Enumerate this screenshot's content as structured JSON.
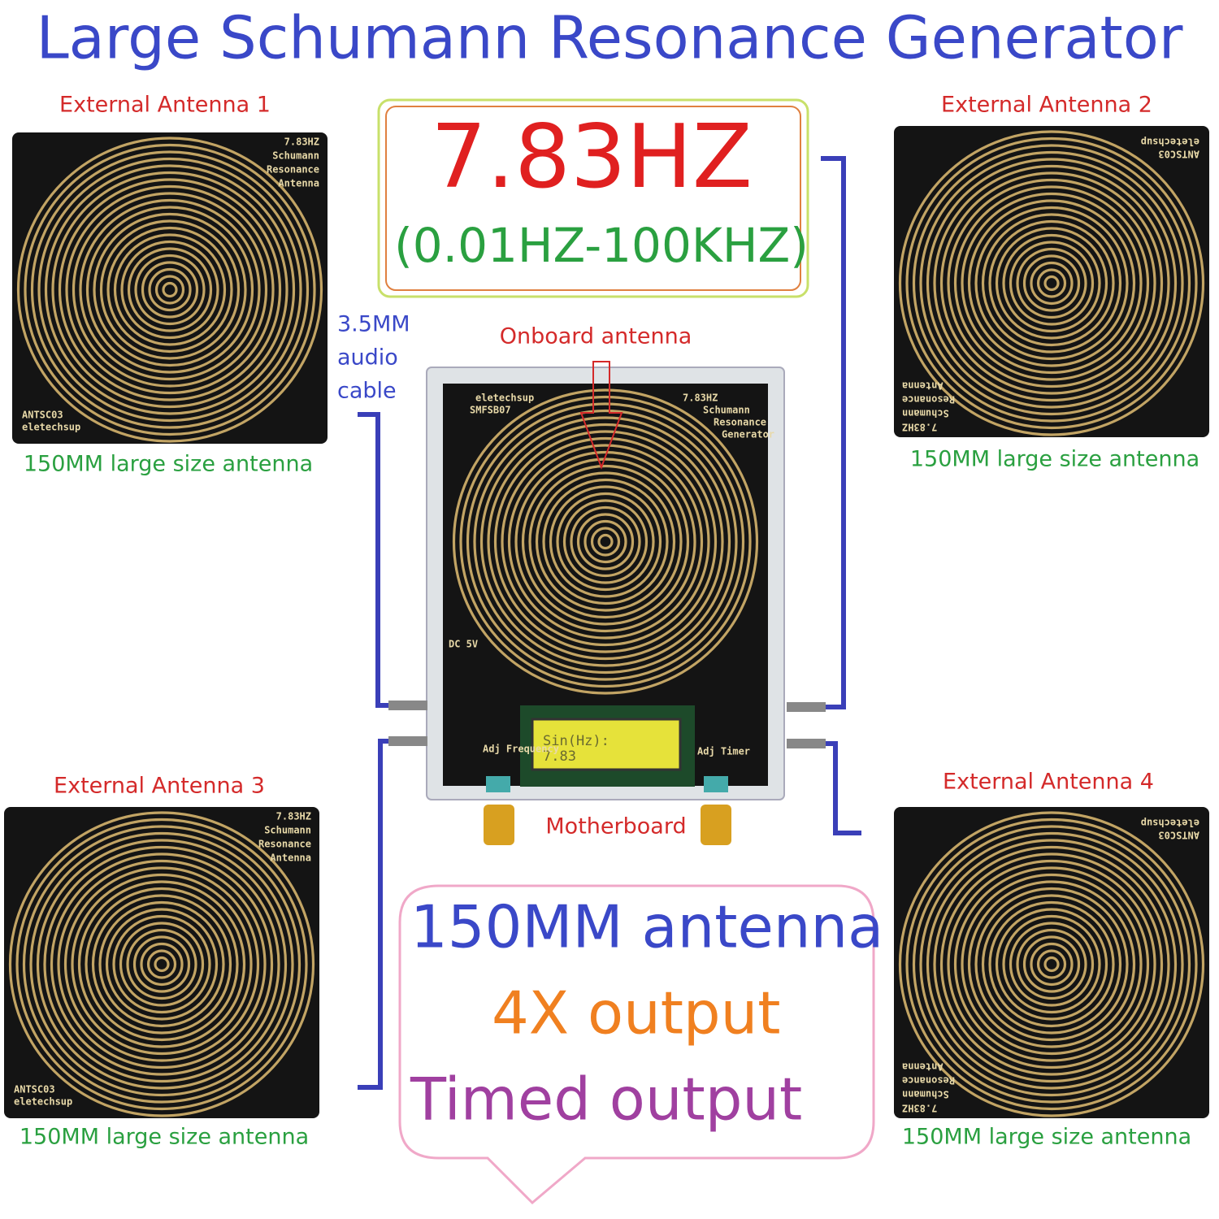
{
  "title": "Large Schumann Resonance Generator",
  "frequency_box": {
    "value": "7.83HZ",
    "range": "(0.01HZ-100KHZ)"
  },
  "antennas": [
    {
      "label": "External Antenna 1",
      "caption": "150MM large size antenna"
    },
    {
      "label": "External Antenna 2",
      "caption": "150MM large size antenna"
    },
    {
      "label": "External Antenna 3",
      "caption": "150MM large size antenna"
    },
    {
      "label": "External Antenna 4",
      "caption": "150MM large size antenna"
    }
  ],
  "antenna_pcb": {
    "lines": [
      "7.83HZ",
      "Schumann",
      "Resonance",
      "Antenna"
    ],
    "model": "ANTSC03",
    "brand": "eletechsup"
  },
  "cable_label": [
    "3.5MM",
    "audio",
    "cable"
  ],
  "onboard_label": "Onboard antenna",
  "motherboard": {
    "label": "Motherboard",
    "brand": "eletechsup",
    "model": "SMFSB07",
    "pcb_lines": [
      "7.83HZ",
      "Schumann",
      "Resonance",
      "Generator"
    ],
    "lcd": [
      "Sin(Hz):",
      "7.83"
    ],
    "knob_labels": [
      "Adj Frequency",
      "Adj Timer"
    ],
    "power": "DC 5V"
  },
  "features": [
    "150MM antenna",
    "4X output",
    "Timed output"
  ]
}
